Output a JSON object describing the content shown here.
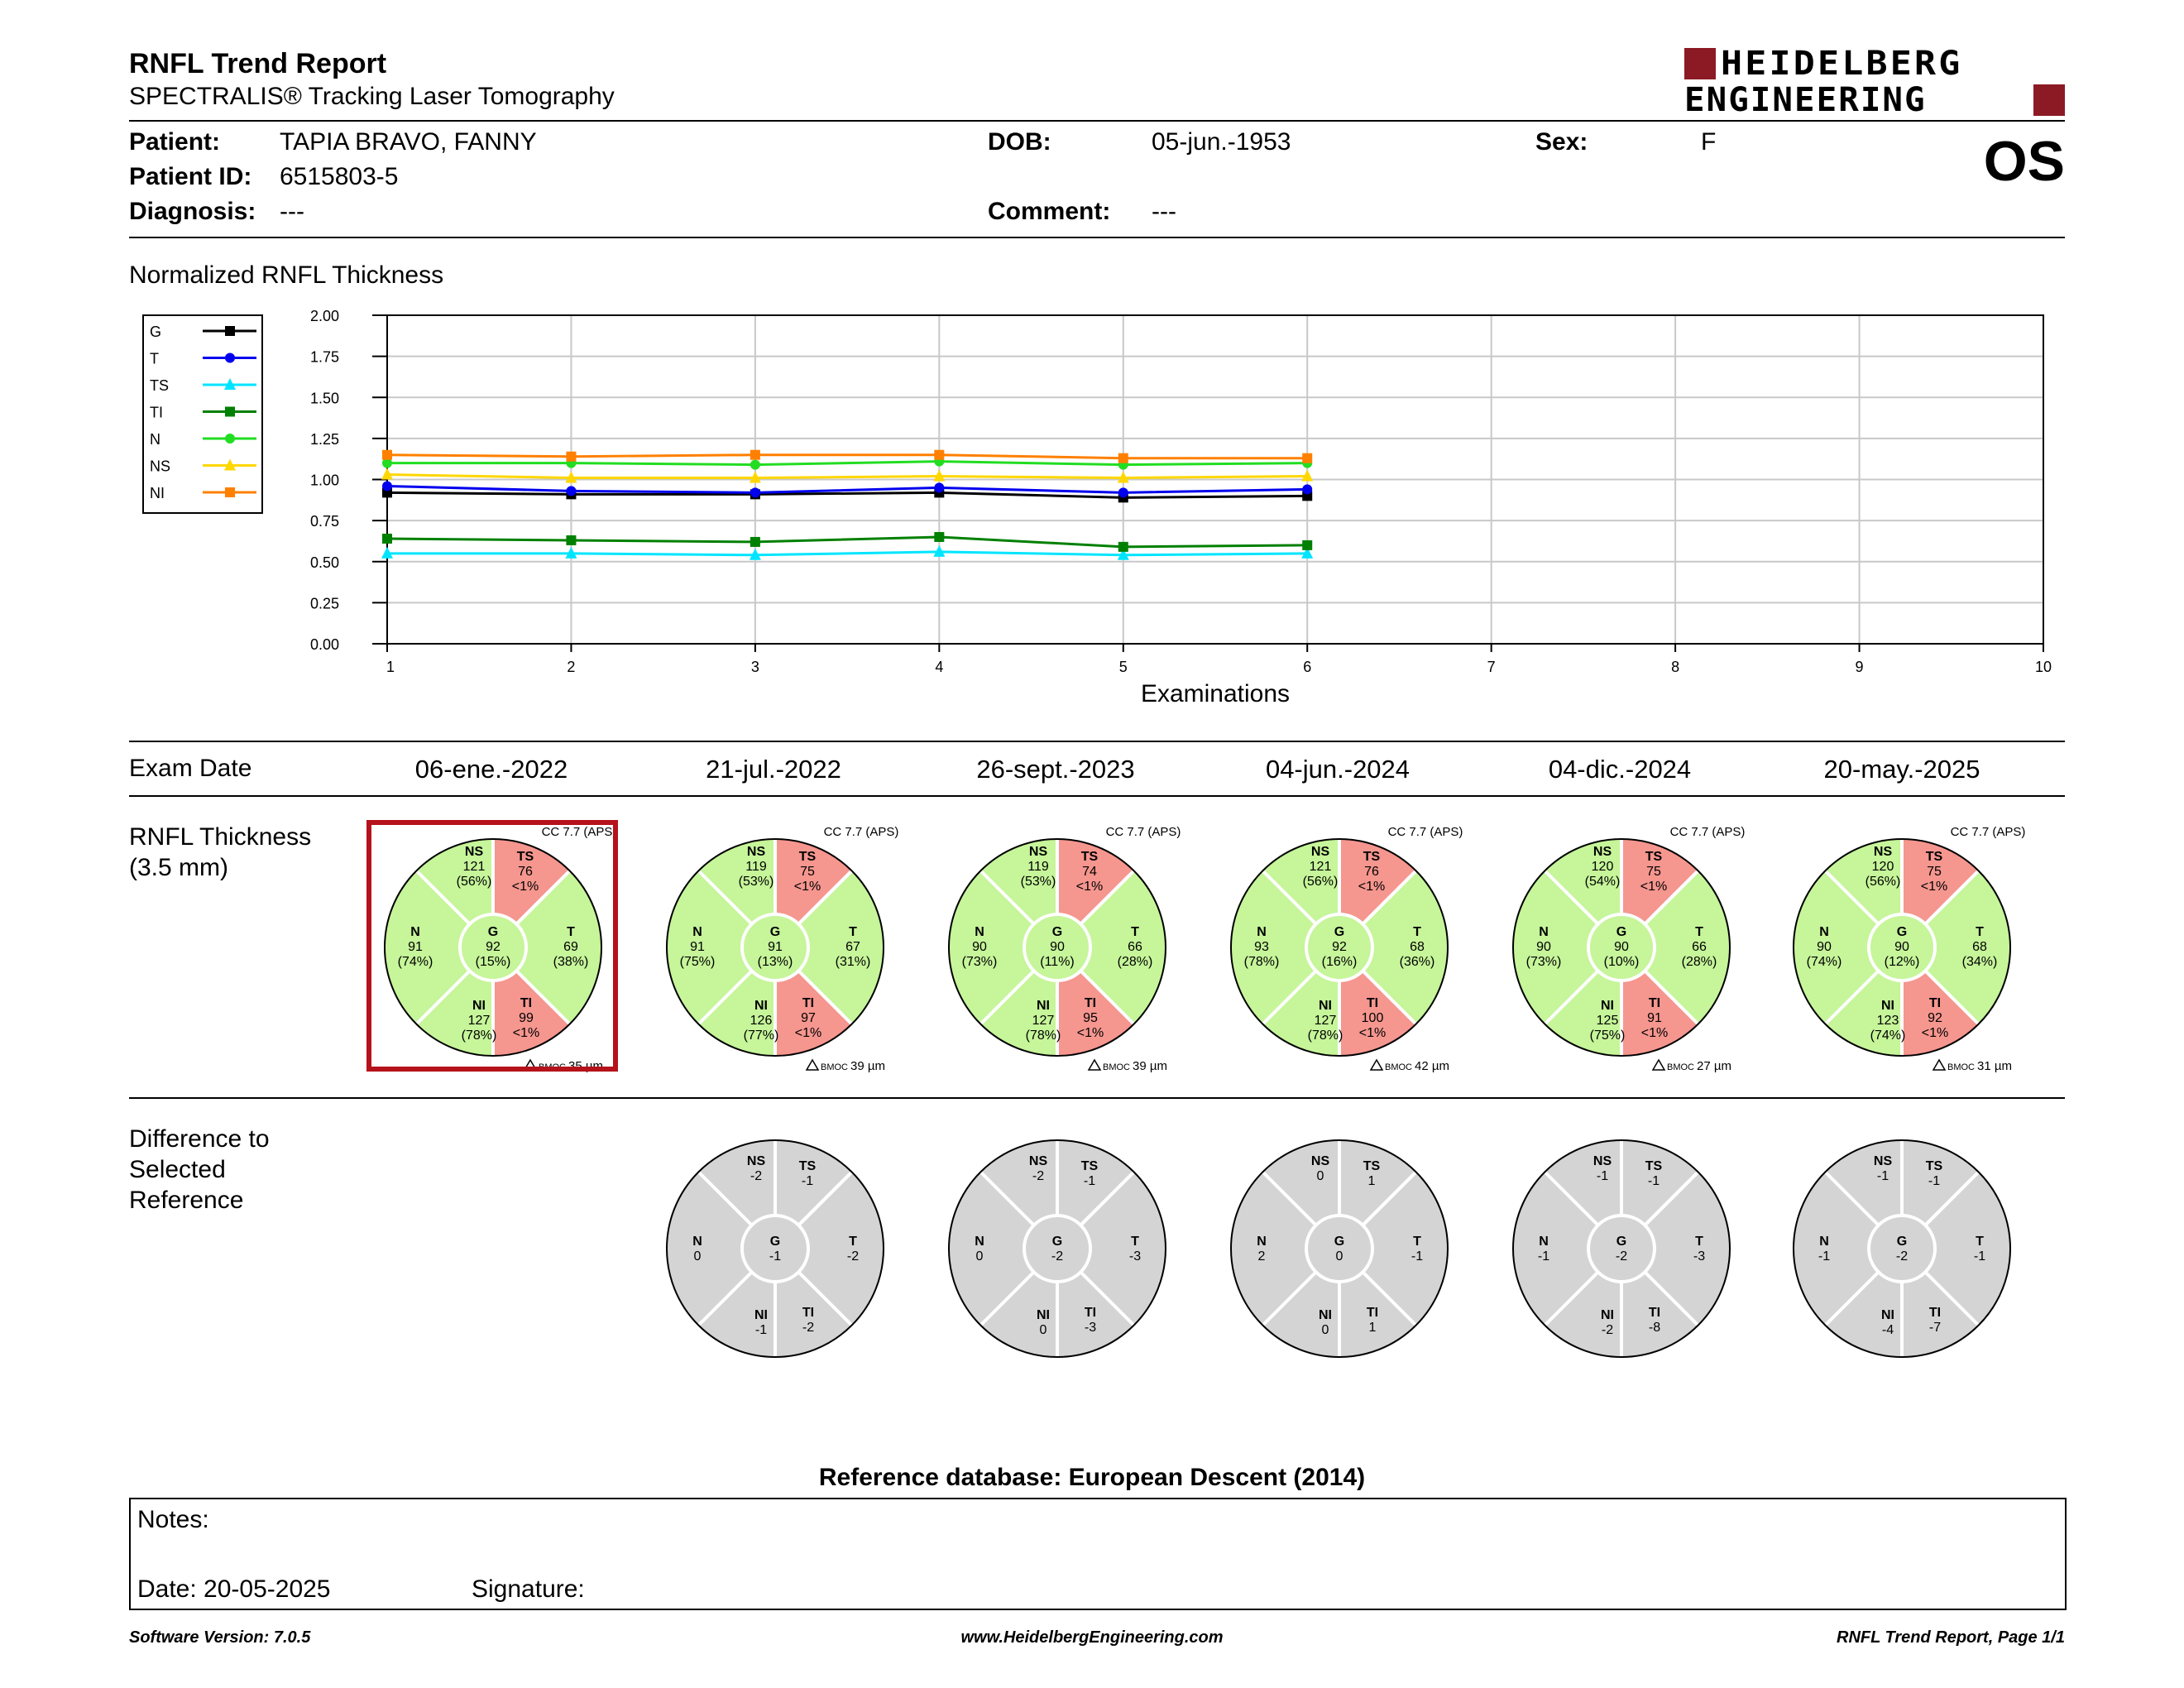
{
  "header": {
    "title": "RNFL Trend Report",
    "subtitle": "SPECTRALIS® Tracking Laser Tomography",
    "brand_line1": "HEIDELBERG",
    "brand_line2": "ENGINEERING",
    "eye": "OS",
    "brand_color": "#8b1a24"
  },
  "patient": {
    "patient_label": "Patient:",
    "patient": "TAPIA BRAVO, FANNY",
    "id_label": "Patient ID:",
    "id": "6515803-5",
    "diagnosis_label": "Diagnosis:",
    "diagnosis": "---",
    "dob_label": "DOB:",
    "dob": "05-jun.-1953",
    "comment_label": "Comment:",
    "comment": "---",
    "sex_label": "Sex:",
    "sex": "F"
  },
  "chart_section_title": "Normalized RNFL Thickness",
  "chart_data": {
    "type": "line",
    "xlabel": "Examinations",
    "ylabel": "",
    "x": [
      1,
      2,
      3,
      4,
      5,
      6
    ],
    "xlim": [
      1,
      10
    ],
    "xticks": [
      "1",
      "2",
      "3",
      "4",
      "5",
      "6",
      "7",
      "8",
      "9",
      "10"
    ],
    "ylim": [
      0,
      2
    ],
    "yticks": [
      "0.00",
      "0.25",
      "0.50",
      "0.75",
      "1.00",
      "1.25",
      "1.50",
      "1.75",
      "2.00"
    ],
    "grid": true,
    "legend_placement": "left",
    "series": [
      {
        "name": "G",
        "color": "#000000",
        "marker": "square",
        "values": [
          0.92,
          0.91,
          0.91,
          0.92,
          0.89,
          0.9
        ]
      },
      {
        "name": "T",
        "color": "#0000ee",
        "marker": "circle",
        "values": [
          0.96,
          0.93,
          0.92,
          0.95,
          0.92,
          0.94
        ]
      },
      {
        "name": "TS",
        "color": "#00e5ff",
        "marker": "triangle",
        "values": [
          0.55,
          0.55,
          0.54,
          0.56,
          0.54,
          0.55
        ]
      },
      {
        "name": "TI",
        "color": "#008000",
        "marker": "square",
        "values": [
          0.64,
          0.63,
          0.62,
          0.65,
          0.59,
          0.6
        ]
      },
      {
        "name": "N",
        "color": "#22dd22",
        "marker": "circle",
        "values": [
          1.1,
          1.1,
          1.09,
          1.11,
          1.09,
          1.1
        ]
      },
      {
        "name": "NS",
        "color": "#ffd700",
        "marker": "triangle",
        "values": [
          1.03,
          1.01,
          1.01,
          1.02,
          1.01,
          1.02
        ]
      },
      {
        "name": "NI",
        "color": "#ff8000",
        "marker": "square",
        "values": [
          1.15,
          1.14,
          1.15,
          1.15,
          1.13,
          1.13
        ]
      }
    ]
  },
  "exams": {
    "row_label": "Exam Date",
    "thickness_label_1": "RNFL Thickness",
    "thickness_label_2": "(3.5 mm)",
    "diff_label_1": "Difference to",
    "diff_label_2": "Selected",
    "diff_label_3": "Reference",
    "cc_prefix": "CC",
    "bmoc_label": "BMOC",
    "dates": [
      "06-ene.-2022",
      "21-jul.-2022",
      "26-sept.-2023",
      "04-jun.-2024",
      "04-dic.-2024",
      "20-may.-2025"
    ],
    "cc": [
      "7.7 (APS)",
      "7.7 (APS)",
      "7.7 (APS)",
      "7.7 (APS)",
      "7.7 (APS)",
      "7.7 (APS)"
    ],
    "bmoc": [
      "35 µm",
      "39 µm",
      "39 µm",
      "42 µm",
      "27 µm",
      "31 µm"
    ],
    "thickness": [
      {
        "NS": [
          "121",
          "(56%)"
        ],
        "TS": [
          "76",
          "<1%"
        ],
        "N": [
          "91",
          "(74%)"
        ],
        "G": [
          "92",
          "(15%)"
        ],
        "T": [
          "69",
          "(38%)"
        ],
        "NI": [
          "127",
          "(78%)"
        ],
        "TI": [
          "99",
          "<1%"
        ]
      },
      {
        "NS": [
          "119",
          "(53%)"
        ],
        "TS": [
          "75",
          "<1%"
        ],
        "N": [
          "91",
          "(75%)"
        ],
        "G": [
          "91",
          "(13%)"
        ],
        "T": [
          "67",
          "(31%)"
        ],
        "NI": [
          "126",
          "(77%)"
        ],
        "TI": [
          "97",
          "<1%"
        ]
      },
      {
        "NS": [
          "119",
          "(53%)"
        ],
        "TS": [
          "74",
          "<1%"
        ],
        "N": [
          "90",
          "(73%)"
        ],
        "G": [
          "90",
          "(11%)"
        ],
        "T": [
          "66",
          "(28%)"
        ],
        "NI": [
          "127",
          "(78%)"
        ],
        "TI": [
          "95",
          "<1%"
        ]
      },
      {
        "NS": [
          "121",
          "(56%)"
        ],
        "TS": [
          "76",
          "<1%"
        ],
        "N": [
          "93",
          "(78%)"
        ],
        "G": [
          "92",
          "(16%)"
        ],
        "T": [
          "68",
          "(36%)"
        ],
        "NI": [
          "127",
          "(78%)"
        ],
        "TI": [
          "100",
          "<1%"
        ]
      },
      {
        "NS": [
          "120",
          "(54%)"
        ],
        "TS": [
          "75",
          "<1%"
        ],
        "N": [
          "90",
          "(73%)"
        ],
        "G": [
          "90",
          "(10%)"
        ],
        "T": [
          "66",
          "(28%)"
        ],
        "NI": [
          "125",
          "(75%)"
        ],
        "TI": [
          "91",
          "<1%"
        ]
      },
      {
        "NS": [
          "120",
          "(56%)"
        ],
        "TS": [
          "75",
          "<1%"
        ],
        "N": [
          "90",
          "(74%)"
        ],
        "G": [
          "90",
          "(12%)"
        ],
        "T": [
          "68",
          "(34%)"
        ],
        "NI": [
          "123",
          "(74%)"
        ],
        "TI": [
          "92",
          "<1%"
        ]
      }
    ],
    "difference": [
      null,
      {
        "NS": "-2",
        "TS": "-1",
        "N": "0",
        "G": "-1",
        "T": "-2",
        "NI": "-1",
        "TI": "-2"
      },
      {
        "NS": "-2",
        "TS": "-1",
        "N": "0",
        "G": "-2",
        "T": "-3",
        "NI": "0",
        "TI": "-3"
      },
      {
        "NS": "0",
        "TS": "1",
        "N": "2",
        "G": "0",
        "T": "-1",
        "NI": "0",
        "TI": "1"
      },
      {
        "NS": "-1",
        "TS": "-1",
        "N": "-1",
        "G": "-2",
        "T": "-3",
        "NI": "-2",
        "TI": "-8"
      },
      {
        "NS": "-1",
        "TS": "-1",
        "N": "-1",
        "G": "-2",
        "T": "-1",
        "NI": "-4",
        "TI": "-7"
      }
    ],
    "colors": {
      "normal": "#c6f59a",
      "outside": "#f5968f",
      "diff": "#d4d4d4",
      "selected": "#b5121b"
    }
  },
  "reference_db": "Reference database: European Descent (2014)",
  "notes": {
    "notes_label": "Notes:",
    "date_label": "Date: 20-05-2025",
    "signature_label": "Signature:"
  },
  "footer": {
    "left": "Software Version: 7.0.5",
    "center": "www.HeidelbergEngineering.com",
    "right": "RNFL Trend Report, Page 1/1"
  }
}
